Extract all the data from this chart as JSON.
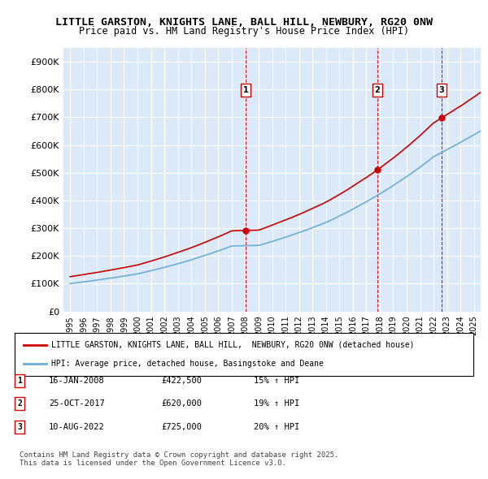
{
  "title_line1": "LITTLE GARSTON, KNIGHTS LANE, BALL HILL, NEWBURY, RG20 0NW",
  "title_line2": "Price paid vs. HM Land Registry's House Price Index (HPI)",
  "ylabel": "",
  "ylim": [
    0,
    950000
  ],
  "yticks": [
    0,
    100000,
    200000,
    300000,
    400000,
    500000,
    600000,
    700000,
    800000,
    900000
  ],
  "ytick_labels": [
    "£0",
    "£100K",
    "£200K",
    "£300K",
    "£400K",
    "£500K",
    "£600K",
    "£700K",
    "£800K",
    "£900K"
  ],
  "xlim_start": 1994.5,
  "xlim_end": 2025.5,
  "background_color": "#dce9f8",
  "plot_bg_color": "#dce9f8",
  "fig_bg_color": "#ffffff",
  "red_line_color": "#cc0000",
  "blue_line_color": "#6baed6",
  "sale_marker_color": "#cc0000",
  "dashed_line_color": "#cc0000",
  "transactions": [
    {
      "num": 1,
      "date": "16-JAN-2008",
      "price": 422500,
      "hpi_pct": "15%",
      "x_year": 2008.04
    },
    {
      "num": 2,
      "date": "25-OCT-2017",
      "price": 620000,
      "hpi_pct": "19%",
      "x_year": 2017.82
    },
    {
      "num": 3,
      "date": "10-AUG-2022",
      "price": 725000,
      "hpi_pct": "20%",
      "x_year": 2022.61
    }
  ],
  "legend_line1": "LITTLE GARSTON, KNIGHTS LANE, BALL HILL,  NEWBURY, RG20 0NW (detached house)",
  "legend_line2": "HPI: Average price, detached house, Basingstoke and Deane",
  "footnote": "Contains HM Land Registry data © Crown copyright and database right 2025.\nThis data is licensed under the Open Government Licence v3.0."
}
